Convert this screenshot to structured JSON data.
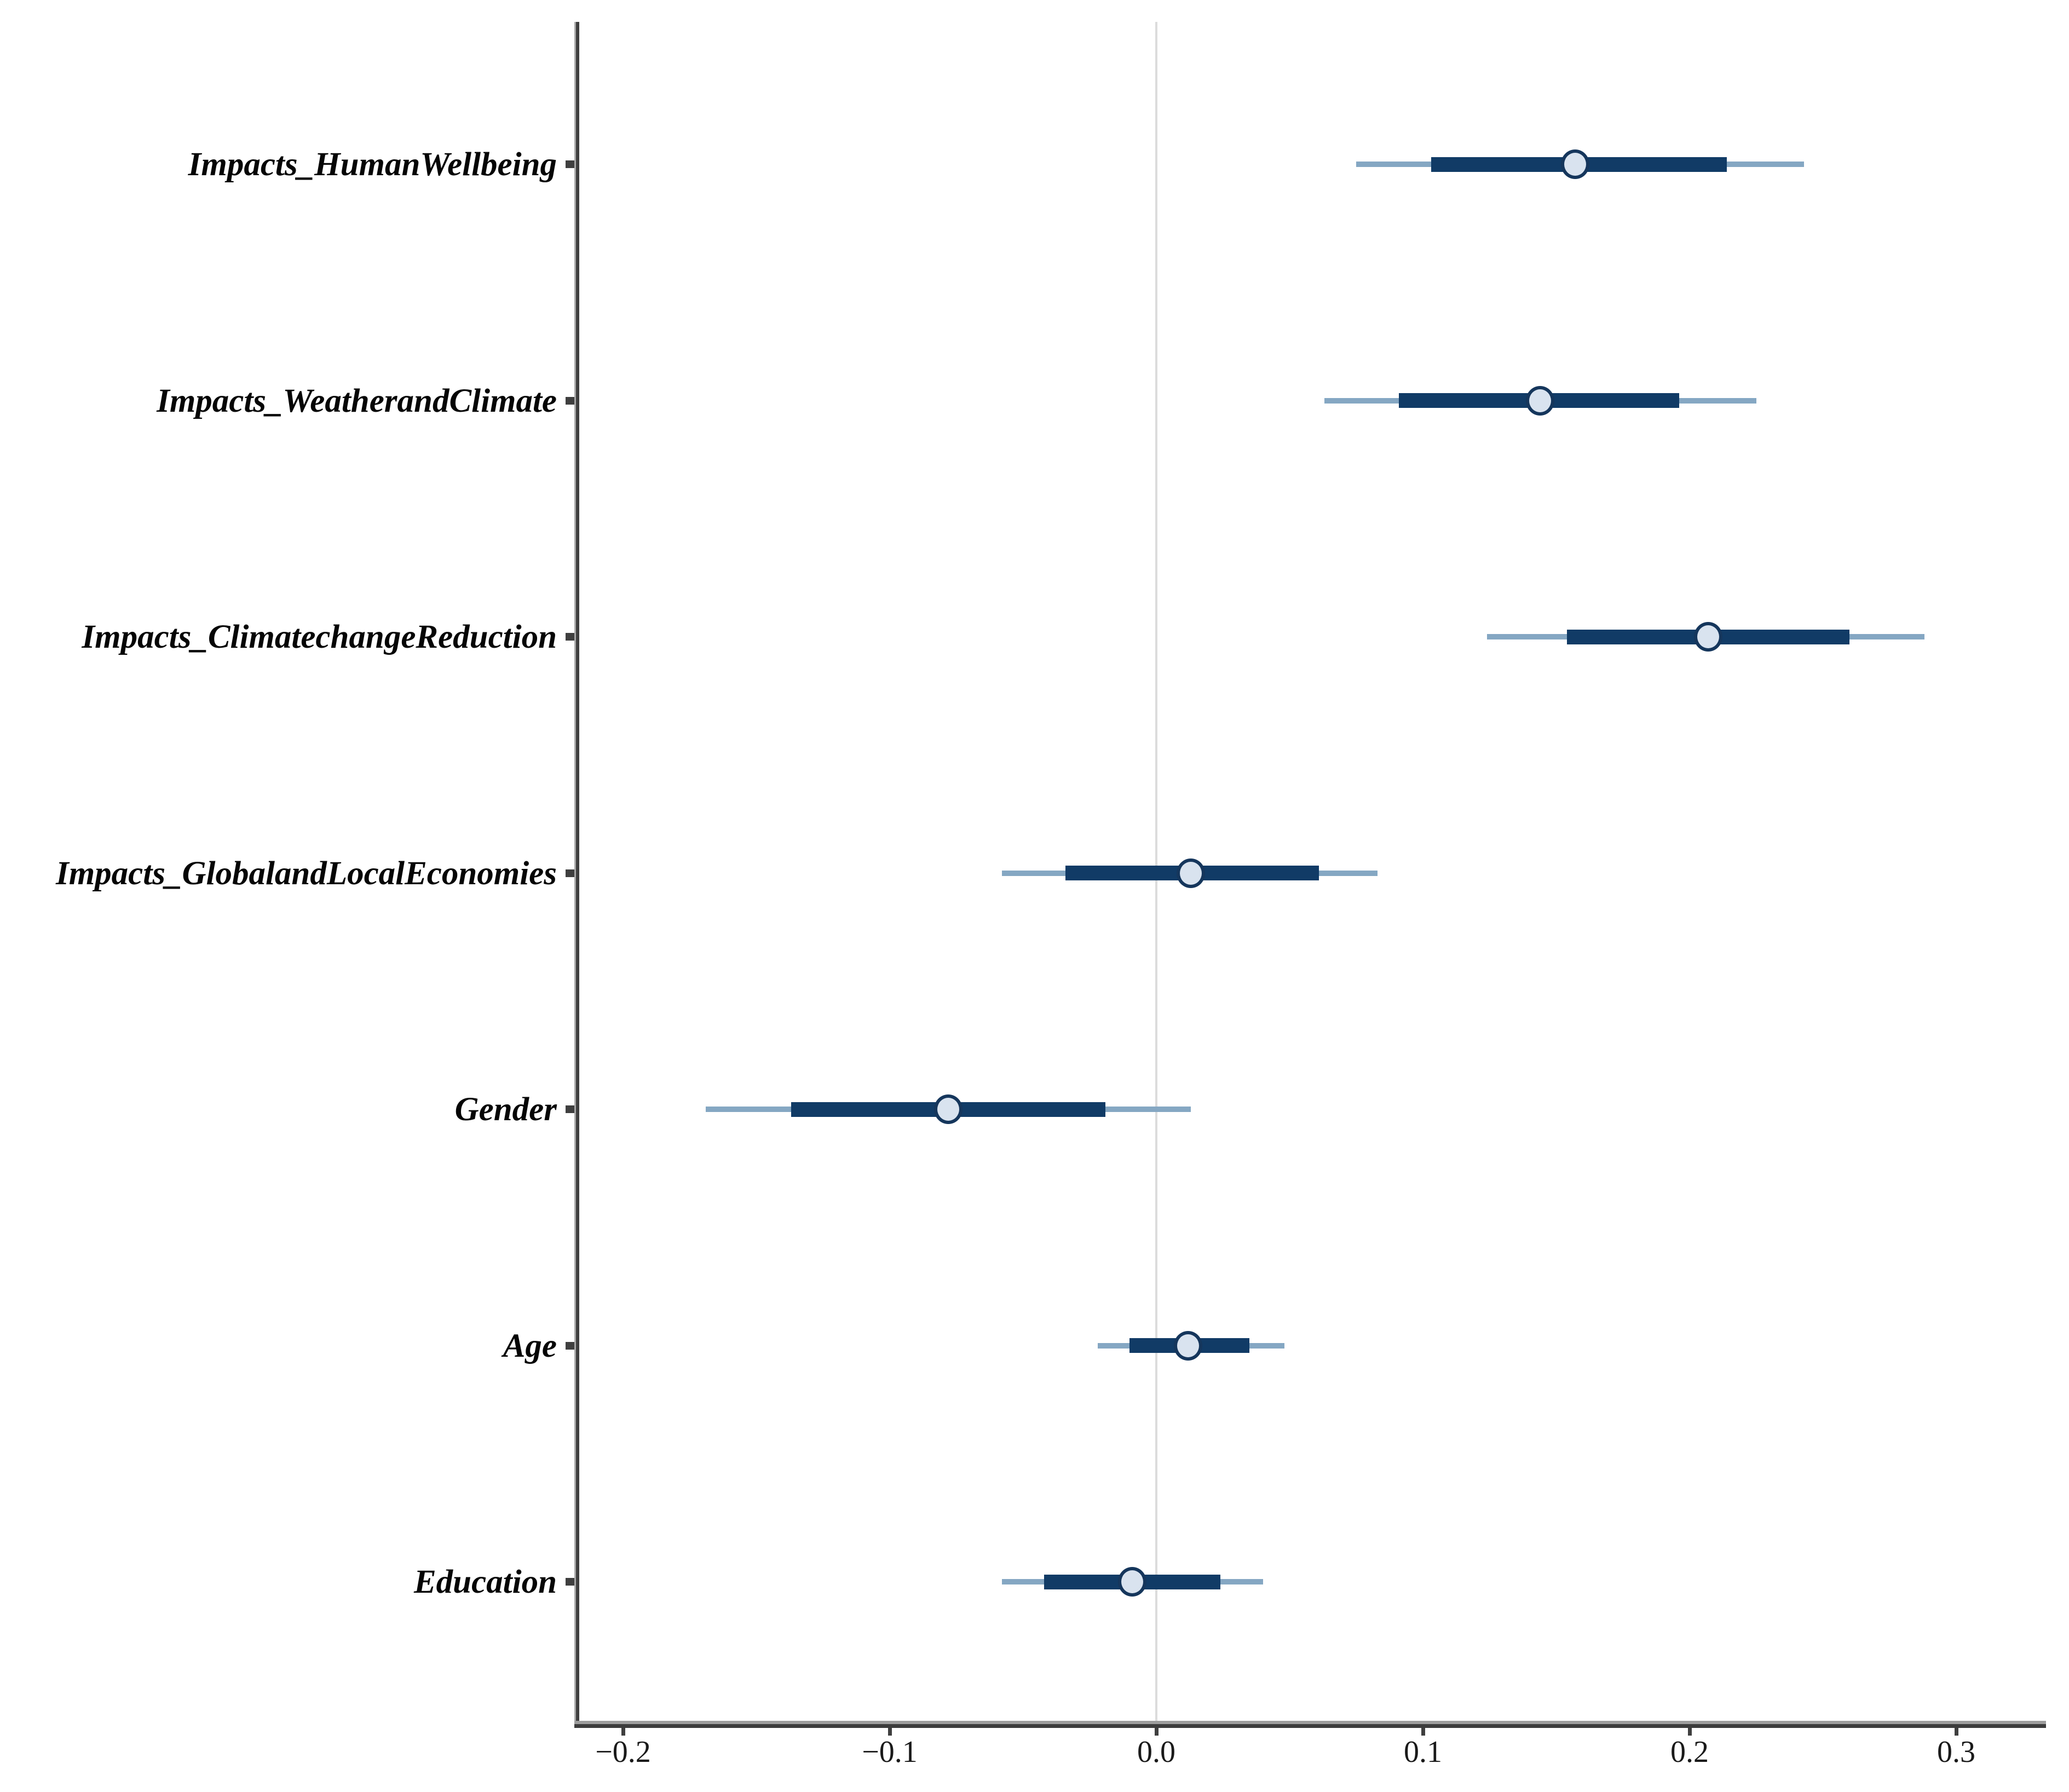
{
  "chart_data": {
    "type": "scatter",
    "subtype": "dot-and-whisker coefficient plot",
    "title": "",
    "xlabel": "",
    "ylabel": "",
    "xlim": [
      -0.225,
      0.34
    ],
    "grid": "zero-reference-line-only",
    "zero_reference_line": 0.0,
    "legend": "none",
    "x_ticks": [
      -0.2,
      -0.1,
      0.0,
      0.1,
      0.2,
      0.3
    ],
    "x_tick_labels": [
      "−0.2",
      "−0.1",
      "0.0",
      "0.1",
      "0.2",
      "0.3"
    ],
    "series": [
      {
        "label": "Impacts_HumanWellbeing",
        "estimate": 0.157,
        "ci_inner": [
          0.103,
          0.214
        ],
        "ci_outer": [
          0.075,
          0.243
        ]
      },
      {
        "label": "Impacts_WeatherandClimate",
        "estimate": 0.144,
        "ci_inner": [
          0.091,
          0.196
        ],
        "ci_outer": [
          0.063,
          0.225
        ]
      },
      {
        "label": "Impacts_ClimatechangeReduction",
        "estimate": 0.207,
        "ci_inner": [
          0.154,
          0.26
        ],
        "ci_outer": [
          0.124,
          0.288
        ]
      },
      {
        "label": "Impacts_GlobalandLocalEconomies",
        "estimate": 0.013,
        "ci_inner": [
          -0.034,
          0.061
        ],
        "ci_outer": [
          -0.058,
          0.083
        ]
      },
      {
        "label": "Gender",
        "estimate": -0.078,
        "ci_inner": [
          -0.137,
          -0.019
        ],
        "ci_outer": [
          -0.169,
          0.013
        ]
      },
      {
        "label": "Age",
        "estimate": 0.012,
        "ci_inner": [
          -0.01,
          0.035
        ],
        "ci_outer": [
          -0.022,
          0.048
        ]
      },
      {
        "label": "Education",
        "estimate": -0.009,
        "ci_inner": [
          -0.042,
          0.024
        ],
        "ci_outer": [
          -0.058,
          0.04
        ]
      }
    ],
    "colors": {
      "inner_ci": "#113b66",
      "outer_ci": "#85a7c3",
      "point_fill": "#d9e3ef",
      "point_stroke": "#15365c",
      "axis_dark": "#3f3f3f",
      "axis_light": "#9d9d9d",
      "gridline": "#dcdcdc",
      "text": "#050505"
    }
  }
}
